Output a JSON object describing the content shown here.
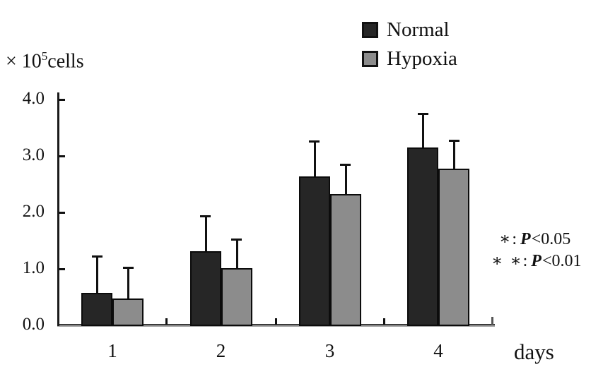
{
  "figure": {
    "y_axis_unit": {
      "prefix": "× 10",
      "sup": "5",
      "suffix": "cells"
    },
    "annotations": [
      {
        "marker": "∗",
        "sep": ":",
        "p": "P",
        "value": "<0.05"
      },
      {
        "marker": "∗ ∗",
        "sep": ":",
        "p": "P",
        "value": "<0.01"
      }
    ]
  },
  "chart_data": {
    "type": "bar",
    "title": "",
    "xlabel": "days",
    "ylabel": "× 10⁵cells",
    "categories": [
      "1",
      "2",
      "3",
      "4"
    ],
    "series": [
      {
        "name": "Normal",
        "color": "#262626",
        "values": [
          0.57,
          1.31,
          2.64,
          3.15
        ],
        "error_upper": [
          0.65,
          0.63,
          0.62,
          0.6
        ]
      },
      {
        "name": "Hypoxia",
        "color": "#8c8c8c",
        "values": [
          0.48,
          1.01,
          2.33,
          2.77
        ],
        "error_upper": [
          0.54,
          0.51,
          0.52,
          0.51
        ]
      }
    ],
    "ylim": [
      0.0,
      4.0
    ],
    "yticks": [
      0.0,
      1.0,
      2.0,
      3.0,
      4.0
    ],
    "ytick_labels": [
      "0.0",
      "1.0",
      "2.0",
      "3.0",
      "4.0"
    ],
    "error_bars": "upper-only",
    "grid": false,
    "legend_position": "top-center",
    "significance_notes": [
      "∗: P<0.05",
      "∗ ∗: P<0.01"
    ]
  }
}
